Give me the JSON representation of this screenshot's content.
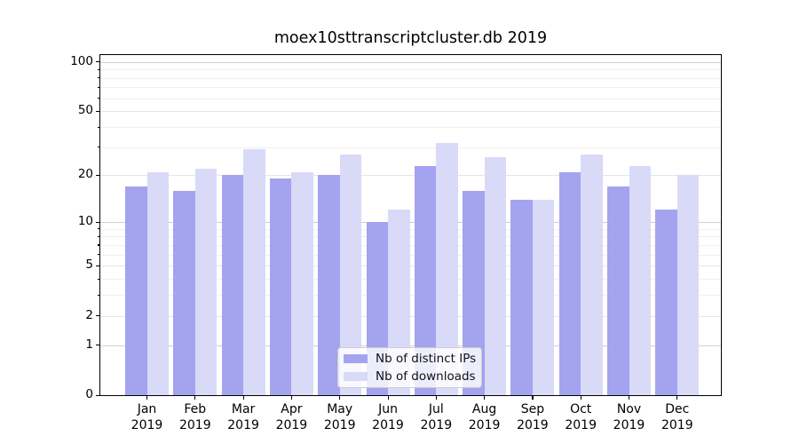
{
  "chart_data": {
    "type": "bar",
    "title": "moex10sttranscriptcluster.db 2019",
    "x": [
      "Jan",
      "Feb",
      "Mar",
      "Apr",
      "May",
      "Jun",
      "Jul",
      "Aug",
      "Sep",
      "Oct",
      "Nov",
      "Dec"
    ],
    "x_year": "2019",
    "series": [
      {
        "name": "Nb of distinct IPs",
        "color": "#a3a3f0",
        "values": [
          17,
          16,
          20,
          19,
          20,
          10,
          23,
          16,
          14,
          21,
          17,
          12
        ]
      },
      {
        "name": "Nb of downloads",
        "color": "#d9d9f8",
        "values": [
          21,
          22,
          29,
          21,
          27,
          12,
          32,
          26,
          14,
          27,
          23,
          20
        ]
      }
    ],
    "yscale": "log1p",
    "ylim": [
      0,
      110
    ],
    "y_tick_labels": [
      100,
      50,
      20,
      10,
      5,
      2,
      1,
      0
    ],
    "y_minor_ticks": [
      3,
      4,
      6,
      7,
      8,
      9,
      30,
      40,
      60,
      70,
      80,
      90
    ],
    "y_decade_lines": [
      1,
      10,
      100
    ],
    "grid": true,
    "legend_position": "lower center"
  }
}
